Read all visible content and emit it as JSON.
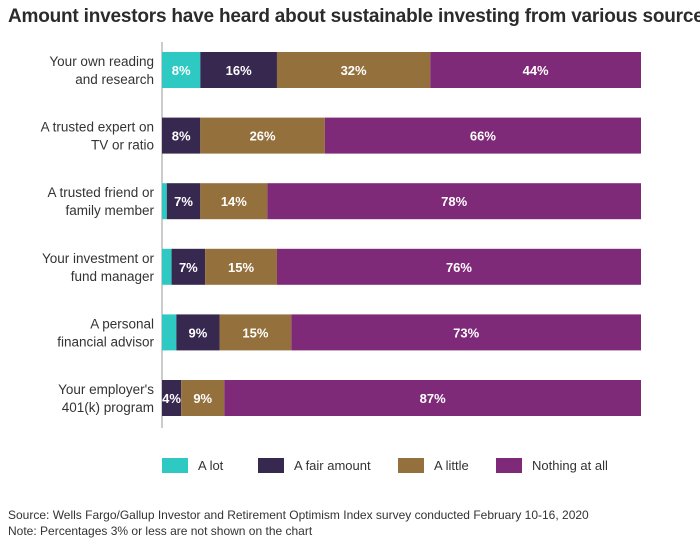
{
  "chart_data": {
    "type": "bar",
    "orientation": "horizontal",
    "stacked": true,
    "title": "Amount investors have heard about sustainable investing from various sources",
    "categories": [
      [
        "Your own reading",
        "and research"
      ],
      [
        "A trusted expert on",
        "TV or ratio"
      ],
      [
        "A trusted friend or",
        "family member"
      ],
      [
        "Your investment or",
        "fund manager"
      ],
      [
        "A personal",
        "financial advisor"
      ],
      [
        "Your employer's",
        "401(k) program"
      ]
    ],
    "series": [
      {
        "name": "A lot",
        "color": "#2ec9c2",
        "values": [
          8,
          0,
          1,
          2,
          3,
          0
        ],
        "labels": [
          "8%",
          "",
          "",
          "",
          "",
          ""
        ]
      },
      {
        "name": "A fair amount",
        "color": "#372850",
        "values": [
          16,
          8,
          7,
          7,
          9,
          4
        ],
        "labels": [
          "16%",
          "8%",
          "7%",
          "7%",
          "9%",
          "4%"
        ]
      },
      {
        "name": "A little",
        "color": "#94703c",
        "values": [
          32,
          26,
          14,
          15,
          15,
          9
        ],
        "labels": [
          "32%",
          "26%",
          "14%",
          "15%",
          "15%",
          "9%"
        ]
      },
      {
        "name": "Nothing at all",
        "color": "#7f2a78",
        "values": [
          44,
          66,
          78,
          76,
          73,
          87
        ],
        "labels": [
          "44%",
          "66%",
          "78%",
          "76%",
          "73%",
          "87%"
        ]
      }
    ],
    "xlim": [
      0,
      100
    ],
    "grid": false,
    "legend_position": "bottom"
  },
  "footer": {
    "source": "Source: Wells Fargo/Gallup Investor and Retirement Optimism Index survey conducted February 10-16, 2020",
    "note": "Note: Percentages 3% or less are not shown on the chart"
  }
}
